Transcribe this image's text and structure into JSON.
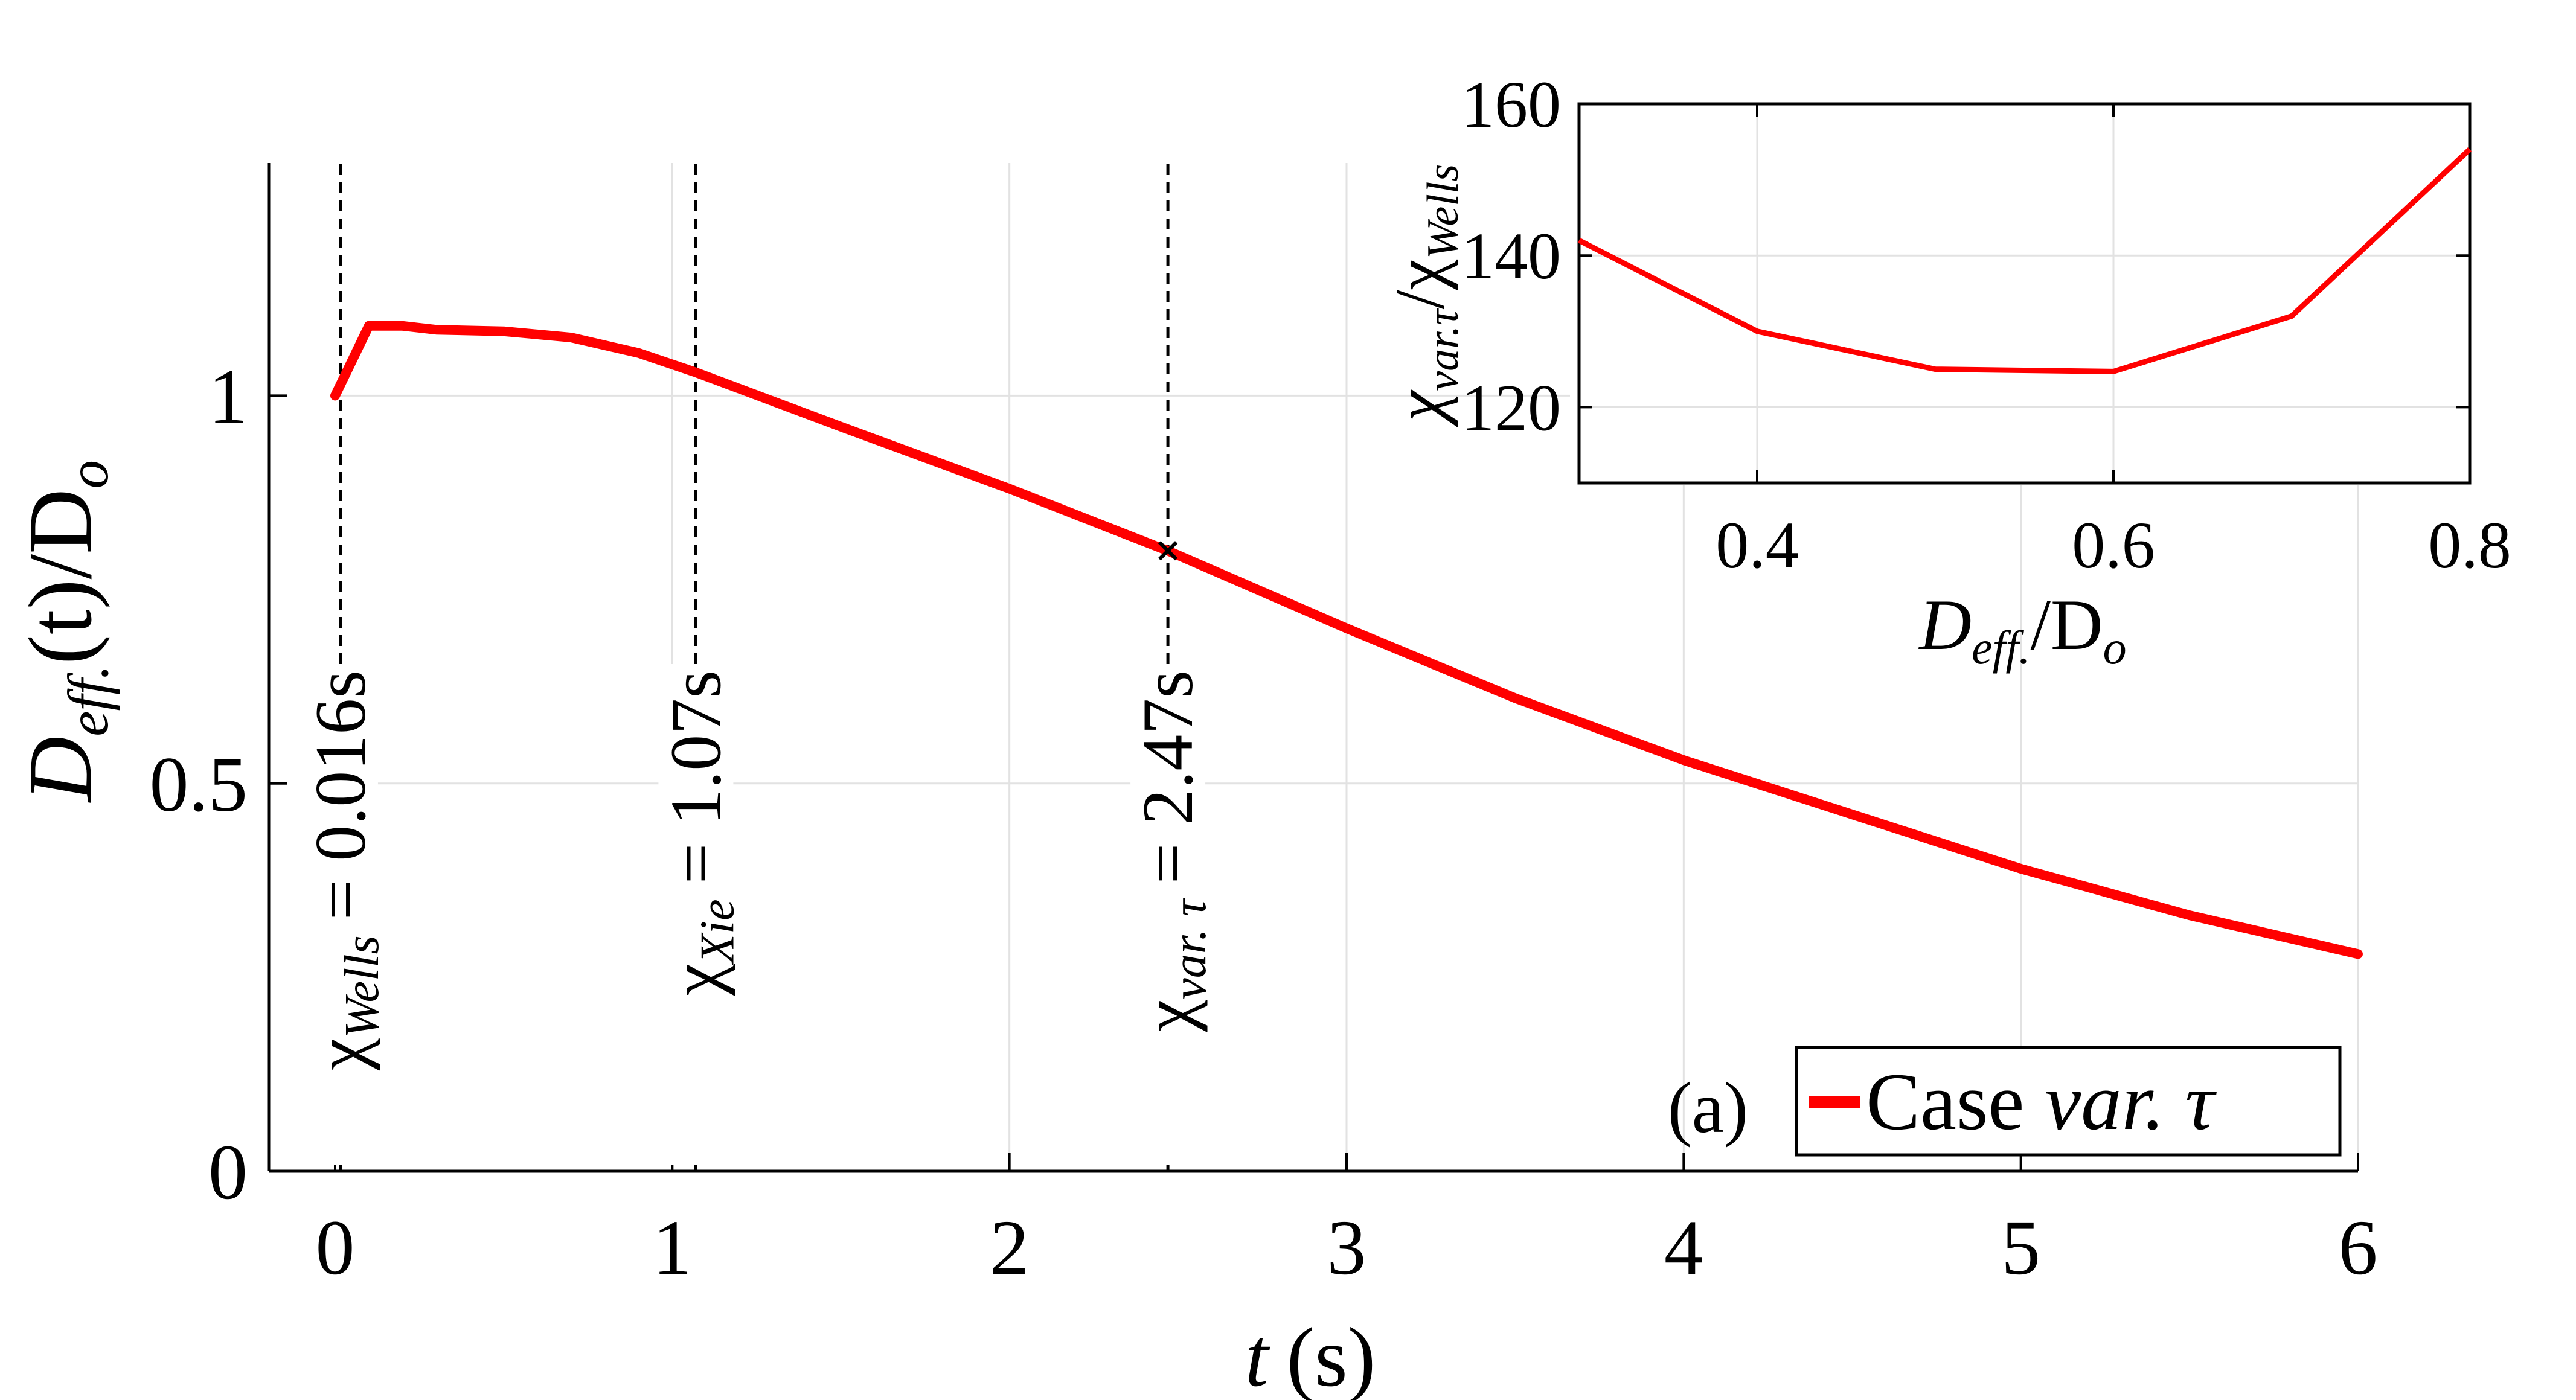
{
  "chart_data": [
    {
      "type": "line",
      "panel_label": "(a)",
      "xlabel": {
        "var": "t",
        "unit": "(s)"
      },
      "ylabel": {
        "base": "D",
        "sub": "eff.",
        "rest": "(t)/D",
        "sub2": "o"
      },
      "xlim": [
        0,
        6
      ],
      "ylim": [
        0,
        1.3
      ],
      "xticks": [
        0,
        1,
        2,
        3,
        4,
        5,
        6
      ],
      "xtick_labels": [
        "0",
        "1",
        "2",
        "3",
        "4",
        "5",
        "6"
      ],
      "yticks": [
        0,
        0.5,
        1
      ],
      "ytick_labels": [
        "0",
        "0.5",
        "1"
      ],
      "grid": true,
      "legend": {
        "position": "bottom-right",
        "prefix": "Case ",
        "italic": "var. τ"
      },
      "series": [
        {
          "name": "Case var. τ",
          "color": "#ff0000",
          "x": [
            0,
            0.1,
            0.2,
            0.3,
            0.5,
            0.7,
            0.9,
            1.07,
            1.5,
            2.0,
            2.47,
            3.0,
            3.5,
            4.0,
            4.5,
            5.0,
            5.5,
            6.0
          ],
          "y": [
            1.0,
            1.09,
            1.09,
            1.085,
            1.083,
            1.075,
            1.055,
            1.03,
            0.96,
            0.88,
            0.8,
            0.7,
            0.61,
            0.53,
            0.46,
            0.39,
            0.33,
            0.28
          ]
        }
      ],
      "marker": {
        "x": 2.47,
        "y": 0.8,
        "symbol": "x"
      },
      "vlines": [
        {
          "x": 0.016,
          "sym": "χ",
          "sub": "Wells",
          "value": "= 0.016s"
        },
        {
          "x": 1.07,
          "sym": "χ",
          "sub": "Xie",
          "value": "= 1.07s"
        },
        {
          "x": 2.47,
          "sym": "χ",
          "sub": "var. τ",
          "value": "= 2.47s"
        }
      ]
    },
    {
      "type": "line",
      "inset": true,
      "xlabel": {
        "base": "D",
        "sub": "eff.",
        "rest": "/D",
        "sub2": "o"
      },
      "ylabel": {
        "sym": "χ",
        "sub": "var.τ",
        "mid": "/χ",
        "sub2": "Wells"
      },
      "xlim": [
        0.3,
        0.8
      ],
      "ylim": [
        110,
        160
      ],
      "xticks": [
        0.4,
        0.6,
        0.8
      ],
      "xtick_labels": [
        "0.4",
        "0.6",
        "0.8"
      ],
      "yticks": [
        120,
        140,
        160
      ],
      "ytick_labels": [
        "120",
        "140",
        "160"
      ],
      "grid": true,
      "series": [
        {
          "color": "#ff0000",
          "x": [
            0.3,
            0.4,
            0.5,
            0.6,
            0.7,
            0.8
          ],
          "y": [
            142,
            130,
            125,
            124.7,
            132,
            154
          ]
        }
      ]
    }
  ]
}
